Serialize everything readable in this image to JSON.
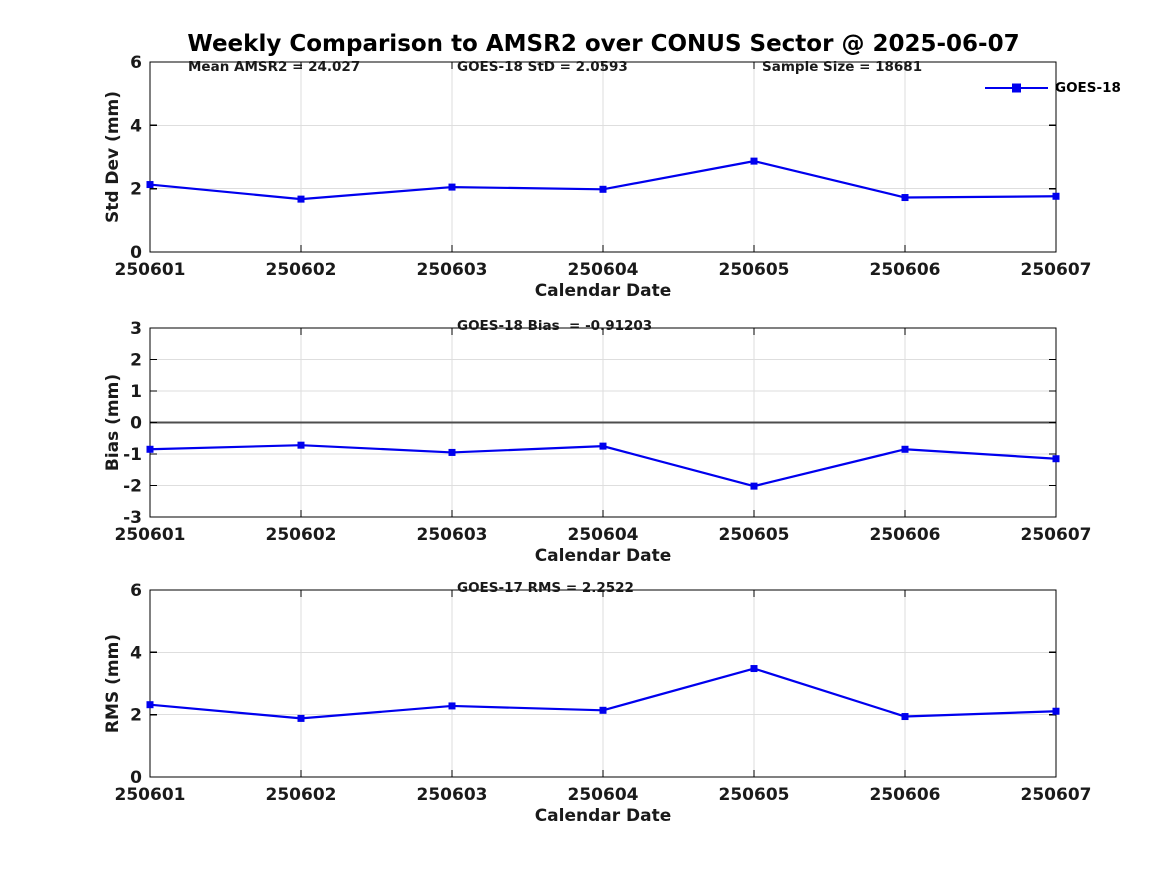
{
  "title": "Weekly Comparison to AMSR2 over CONUS Sector @ 2025-06-07",
  "colors": {
    "series_line": "#0000EE",
    "grid_line": "#DEDEDE",
    "zero_line": "#4D4D4D",
    "axis": "#000000",
    "text": "#1A1A1A"
  },
  "legend": {
    "label": "GOES-18"
  },
  "chart_data": [
    {
      "type": "line",
      "id": "std-dev",
      "annotations": [
        "Mean AMSR2 = 24.027",
        "GOES-18 StD = 2.0593",
        "Sample Size = 18681"
      ],
      "categories": [
        "250601",
        "250602",
        "250603",
        "250604",
        "250605",
        "250606",
        "250607"
      ],
      "series": [
        {
          "name": "GOES-18",
          "values": [
            2.13,
            1.67,
            2.05,
            1.98,
            2.87,
            1.72,
            1.76
          ]
        }
      ],
      "xlabel": "Calendar Date",
      "ylabel": "Std Dev (mm)",
      "ylim": [
        0,
        6
      ],
      "yticks": [
        0,
        2,
        4,
        6
      ],
      "grid": true,
      "zero_line": false,
      "marker": "square",
      "legend_position": "top-right-outside"
    },
    {
      "type": "line",
      "id": "bias",
      "annotations": [
        "GOES-18 Bias  = -0.91203"
      ],
      "categories": [
        "250601",
        "250602",
        "250603",
        "250604",
        "250605",
        "250606",
        "250607"
      ],
      "series": [
        {
          "name": "GOES-18",
          "values": [
            -0.85,
            -0.72,
            -0.95,
            -0.75,
            -2.02,
            -0.85,
            -1.15
          ]
        }
      ],
      "xlabel": "Calendar Date",
      "ylabel": "Bias (mm)",
      "ylim": [
        -3,
        3
      ],
      "yticks": [
        -3,
        -2,
        -1,
        0,
        1,
        2,
        3
      ],
      "grid": true,
      "zero_line": true,
      "marker": "square"
    },
    {
      "type": "line",
      "id": "rms",
      "annotations": [
        "GOES-17 RMS = 2.2522"
      ],
      "categories": [
        "250601",
        "250602",
        "250603",
        "250604",
        "250605",
        "250606",
        "250607"
      ],
      "series": [
        {
          "name": "GOES-18",
          "values": [
            2.32,
            1.88,
            2.28,
            2.14,
            3.48,
            1.94,
            2.11
          ]
        }
      ],
      "xlabel": "Calendar Date",
      "ylabel": "RMS (mm)",
      "ylim": [
        0,
        6
      ],
      "yticks": [
        0,
        2,
        4,
        6
      ],
      "grid": true,
      "zero_line": false,
      "marker": "square"
    }
  ]
}
